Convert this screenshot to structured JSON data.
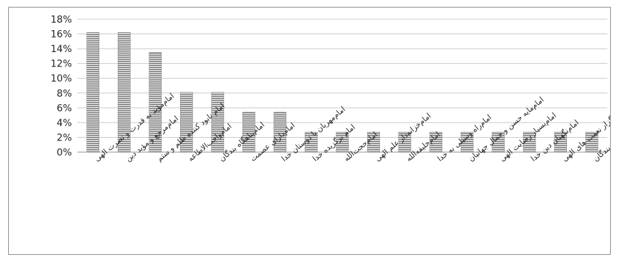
{
  "chart_data": {
    "type": "bar",
    "title": "",
    "xlabel": "",
    "ylabel": "",
    "categories": [
      "امام‌مؤید به قدرت و نصرت الهی",
      "امام‌مرجع و مؤید دین",
      "امام نابود کننده ظلم و ستم",
      "امام‌واجب‌الاطاعه",
      "امام‌پناهگاه بندگان",
      "امام‌دارای عصمت",
      "امام‌مهربان با دوستان خدا",
      "امام برگزیده خدا",
      "امام‌حجت‌الله",
      "امام‌خزانه‌دار علم الهی",
      "امام‌خلیفه‌الله",
      "امام‌راه وسیلی به خدا",
      "امام‌مایه حسن و جمال جهانیان",
      "امام‌بسیار رضایت الهی",
      "امام‌نگهبان دین خدا",
      "امام‌شکرگزار نعمت های الهی",
      "امام‌هادی بندگان"
    ],
    "values": [
      0.162,
      0.162,
      0.135,
      0.081,
      0.081,
      0.054,
      0.054,
      0.027,
      0.027,
      0.027,
      0.027,
      0.027,
      0.027,
      0.027,
      0.027,
      0.027,
      0.027
    ],
    "y_ticks": [
      "0%",
      "2%",
      "4%",
      "6%",
      "8%",
      "10%",
      "12%",
      "14%",
      "16%",
      "18%"
    ],
    "ylim": [
      0,
      0.18
    ],
    "grid": true,
    "legend": "none",
    "bar_fill": "#d9d9d9",
    "bar_stripe": "#6e6e6e",
    "grid_color": "#c8c8c8",
    "axis_color": "#8c8c8c"
  }
}
